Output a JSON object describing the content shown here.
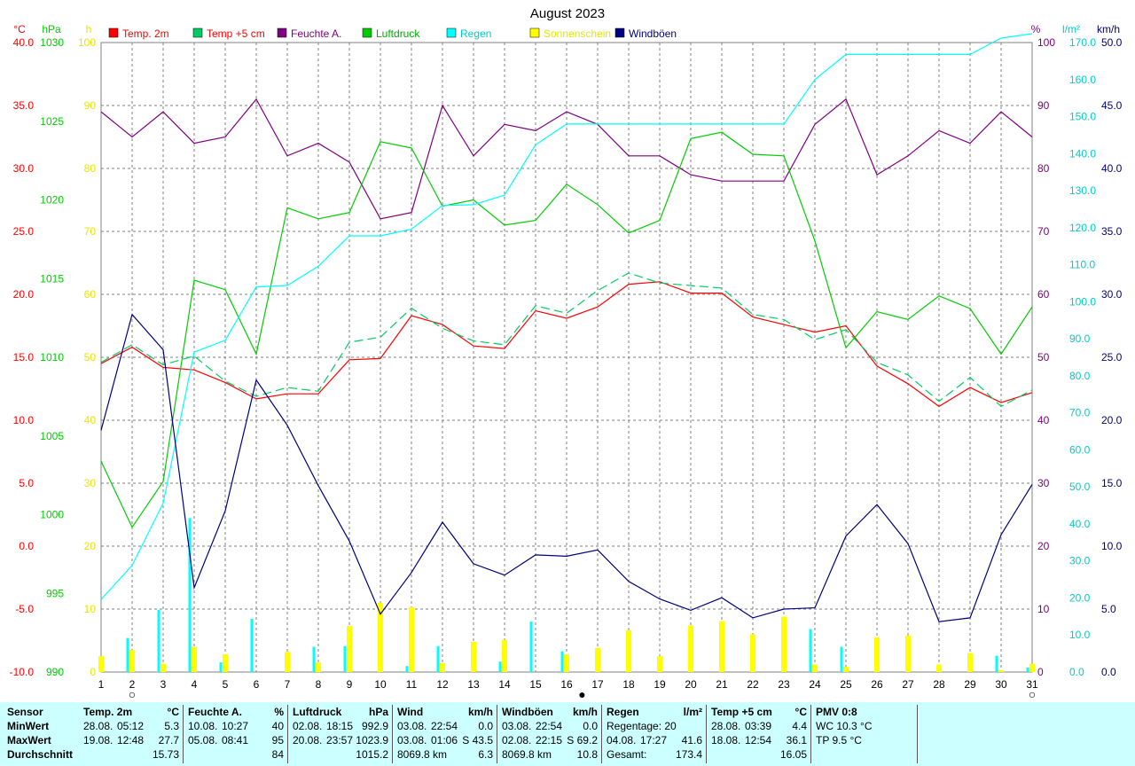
{
  "title": "August 2023",
  "axes": {
    "temp": {
      "unit": "°C",
      "color": "#ff0000",
      "ticks": [
        "40.0",
        "35.0",
        "30.0",
        "25.0",
        "20.0",
        "15.0",
        "10.0",
        "5.0",
        "0.0",
        "-5.0",
        "-10.0"
      ],
      "range": [
        -10,
        40
      ]
    },
    "pressure": {
      "unit": "hPa",
      "color": "#00cc00",
      "ticks": [
        "1030",
        "1025",
        "1020",
        "1015",
        "1010",
        "1005",
        "1000",
        "995",
        "990"
      ],
      "range": [
        990,
        1030
      ]
    },
    "sun_hours": {
      "unit": "h",
      "color": "#e6e600",
      "ticks": [
        "100",
        "90",
        "80",
        "70",
        "60",
        "50",
        "40",
        "30",
        "20",
        "10",
        "0"
      ],
      "range": [
        0,
        100
      ]
    },
    "humidity": {
      "unit": "%",
      "color": "#800080",
      "ticks": [
        "100",
        "90",
        "80",
        "70",
        "60",
        "50",
        "40",
        "30",
        "20",
        "10",
        "0"
      ],
      "range": [
        0,
        100
      ]
    },
    "rain": {
      "unit": "l/m²",
      "color": "#00cccc",
      "ticks": [
        "170.0",
        "160.0",
        "150.0",
        "140.0",
        "130.0",
        "120.0",
        "110.0",
        "100.0",
        "90.0",
        "80.0",
        "70.0",
        "60.0",
        "50.0",
        "40.0",
        "30.0",
        "20.0",
        "10.0",
        "0.0"
      ],
      "range": [
        0,
        170
      ]
    },
    "wind": {
      "unit": "km/h",
      "color": "#000080",
      "ticks": [
        "50.0",
        "45.0",
        "40.0",
        "35.0",
        "30.0",
        "25.0",
        "20.0",
        "15.0",
        "10.0",
        "5.0",
        "0.0"
      ],
      "range": [
        0,
        50
      ]
    }
  },
  "legend": [
    {
      "label": "Temp. 2m",
      "color": "#ff0000",
      "text_color": "#ff0000"
    },
    {
      "label": "Temp +5 cm",
      "color": "#00cc66",
      "text_color": "#ff0000"
    },
    {
      "label": "Feuchte A.",
      "color": "#800080",
      "text_color": "#800080"
    },
    {
      "label": "Luftdruck",
      "color": "#00cc00",
      "text_color": "#00aa00"
    },
    {
      "label": "Regen",
      "color": "#00ffff",
      "text_color": "#00cccc"
    },
    {
      "label": "Sonnenschein",
      "color": "#ffff00",
      "text_color": "#e6e600"
    },
    {
      "label": "Windböen",
      "color": "#000080",
      "text_color": "#000080"
    }
  ],
  "chart_data": {
    "type": "line",
    "x": [
      "1",
      "2",
      "3",
      "4",
      "5",
      "6",
      "7",
      "8",
      "9",
      "10",
      "11",
      "12",
      "13",
      "14",
      "15",
      "16",
      "17",
      "18",
      "19",
      "20",
      "21",
      "22",
      "23",
      "24",
      "25",
      "26",
      "27",
      "28",
      "29",
      "30",
      "31"
    ],
    "series": [
      {
        "name": "Temp. 2m",
        "axis": "temp",
        "color": "#ff0000",
        "values": [
          14.5,
          15.8,
          14.2,
          14.0,
          13.0,
          11.7,
          12.1,
          12.1,
          14.8,
          14.9,
          18.3,
          17.6,
          15.9,
          15.7,
          18.7,
          18.1,
          19.0,
          20.8,
          21.0,
          20.1,
          20.1,
          18.2,
          17.6,
          17.0,
          17.5,
          14.3,
          12.9,
          11.1,
          12.6,
          11.4,
          12.2
        ]
      },
      {
        "name": "Temp +5 cm",
        "axis": "temp",
        "color": "#00cc66",
        "dashed": true,
        "values": [
          14.6,
          16.0,
          14.4,
          15.1,
          13.1,
          11.9,
          12.6,
          12.3,
          16.2,
          16.6,
          18.9,
          17.3,
          16.3,
          16.0,
          19.1,
          18.5,
          20.3,
          21.7,
          20.9,
          20.7,
          20.5,
          18.4,
          18.0,
          16.4,
          17.2,
          14.6,
          13.6,
          11.5,
          13.4,
          11.1,
          12.4
        ]
      },
      {
        "name": "Feuchte A.",
        "axis": "humidity",
        "color": "#800080",
        "values": [
          89,
          85,
          89,
          84,
          85,
          91,
          82,
          84,
          81,
          72,
          73,
          90,
          82,
          87,
          86,
          89,
          87,
          82,
          82,
          79,
          78,
          78,
          78,
          87,
          91,
          79,
          82,
          86,
          84,
          89,
          85
        ]
      },
      {
        "name": "Luftdruck",
        "axis": "pressure",
        "color": "#00cc00",
        "values": [
          1003.4,
          999.2,
          1002.1,
          1014.9,
          1014.3,
          1010.2,
          1019.5,
          1018.8,
          1019.2,
          1023.7,
          1023.3,
          1019.6,
          1020.0,
          1018.4,
          1018.7,
          1021.0,
          1019.7,
          1017.9,
          1018.7,
          1023.9,
          1024.3,
          1022.9,
          1022.8,
          1017.4,
          1010.6,
          1012.9,
          1012.4,
          1013.9,
          1013.1,
          1010.2,
          1013.2
        ]
      },
      {
        "name": "Regen",
        "axis": "rain",
        "color": "#00ffff",
        "values": [
          19.6,
          28.8,
          45.6,
          86.4,
          89.6,
          104.0,
          104.4,
          109.6,
          117.8,
          117.8,
          119.6,
          126.0,
          126.2,
          128.8,
          142.4,
          148.0,
          148.0,
          148.0,
          148.0,
          148.0,
          148.0,
          148.0,
          148.0,
          160.0,
          166.8,
          166.8,
          166.8,
          166.8,
          166.8,
          171.2,
          172.4
        ]
      },
      {
        "name": "Windböen",
        "axis": "wind",
        "color": "#000080",
        "values": [
          19.2,
          28.4,
          25.6,
          6.7,
          12.8,
          23.2,
          19.6,
          14.8,
          10.4,
          4.6,
          7.9,
          11.9,
          8.6,
          7.7,
          9.3,
          9.2,
          9.7,
          7.2,
          5.8,
          4.9,
          5.9,
          4.3,
          5.0,
          5.1,
          10.8,
          13.3,
          10.2,
          4.0,
          4.3,
          10.9,
          14.9
        ]
      }
    ],
    "bars": [
      {
        "name": "Sonnenschein",
        "axis": "sun_hours",
        "color": "#ffff00",
        "values": [
          2.5,
          3.5,
          1.3,
          4.0,
          2.8,
          0,
          3.2,
          1.5,
          7.3,
          11.0,
          10.3,
          1.4,
          4.8,
          5.1,
          0,
          2.8,
          3.8,
          6.6,
          2.5,
          7.4,
          8.1,
          6.0,
          8.8,
          1.2,
          0.8,
          5.5,
          5.8,
          1.2,
          3.0,
          0.3,
          1.3
        ]
      },
      {
        "name": "Regen täglich",
        "axis": "rain",
        "color": "#00ffff",
        "values": [
          0,
          9.2,
          16.8,
          41.6,
          2.6,
          14.4,
          0,
          6.8,
          7.0,
          0,
          1.6,
          7.0,
          0,
          2.8,
          13.6,
          5.6,
          0,
          0,
          0,
          0,
          0,
          0,
          0,
          11.6,
          6.8,
          0,
          0,
          0,
          0,
          4.4,
          1.2
        ]
      }
    ],
    "markers": [
      {
        "x": "2",
        "symbol": "○"
      },
      {
        "x": "16.5",
        "symbol": "●"
      },
      {
        "x": "31",
        "symbol": "○"
      }
    ]
  },
  "stats": {
    "row_labels": [
      "Sensor",
      "MinWert",
      "MaxWert",
      "Durchschnitt"
    ],
    "boxes": [
      {
        "name": "Temp. 2m",
        "unit": "°C",
        "min": [
          "28.08.",
          "05:12",
          "5.3"
        ],
        "max": [
          "19.08.",
          "12:48",
          "27.7"
        ],
        "avg": [
          "",
          "",
          "15.73"
        ]
      },
      {
        "name": "Feuchte A.",
        "unit": "%",
        "min": [
          "10.08.",
          "10:27",
          "40"
        ],
        "max": [
          "05.08.",
          "08:41",
          "95"
        ],
        "avg": [
          "",
          "",
          "84"
        ]
      },
      {
        "name": "Luftdruck",
        "unit": "hPa",
        "min": [
          "02.08.",
          "18:15",
          "992.9"
        ],
        "max": [
          "20.08.",
          "23:57",
          "1023.9"
        ],
        "avg": [
          "",
          "",
          "1015.2"
        ]
      },
      {
        "name": "Wind",
        "unit": "km/h",
        "min": [
          "03.08.",
          "22:54",
          "0.0"
        ],
        "max": [
          "03.08.",
          "01:06",
          "S 43.5"
        ],
        "avg": [
          "8069.8 km",
          "",
          "6.3"
        ]
      },
      {
        "name": "Windböen",
        "unit": "km/h",
        "min": [
          "03.08.",
          "22:54",
          "0.0"
        ],
        "max": [
          "02.08.",
          "22:15",
          "S 69.2"
        ],
        "avg": [
          "8069.8 km",
          "",
          "10.8"
        ]
      },
      {
        "name": "Regen",
        "unit": "l/m²",
        "min": [
          "Regentage: 20",
          "",
          ""
        ],
        "max": [
          "04.08.",
          "17:27",
          "41.6"
        ],
        "avg": [
          "Gesamt:",
          "",
          "173.4"
        ]
      },
      {
        "name": "Temp +5 cm",
        "unit": "°C",
        "min": [
          "28.08.",
          "03:39",
          "4.4"
        ],
        "max": [
          "18.08.",
          "12:54",
          "36.1"
        ],
        "avg": [
          "",
          "",
          "16.05"
        ]
      },
      {
        "name": "PMV 0:8",
        "unit": "",
        "min": [
          "WC 10.3 °C",
          "",
          ""
        ],
        "max": [
          "TP 9.5 °C",
          "",
          ""
        ],
        "avg": [
          "",
          "",
          ""
        ]
      }
    ]
  }
}
